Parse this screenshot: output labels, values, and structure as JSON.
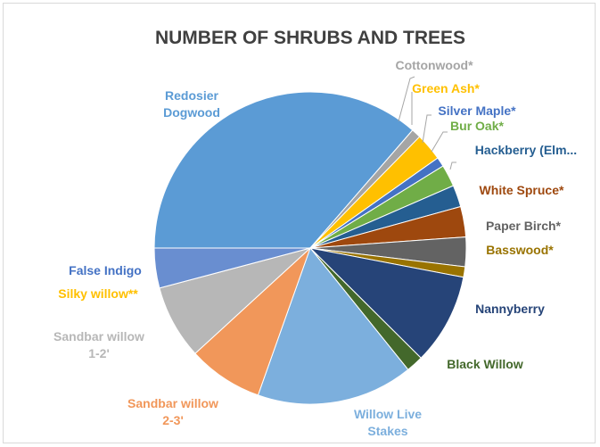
{
  "chart_data": {
    "type": "pie",
    "title": "NUMBER OF SHRUBS AND TREES",
    "slices": [
      {
        "label": "Redosier Dogwood",
        "value": 37.0,
        "color": "#5b9bd5"
      },
      {
        "label": "Cottonwood*",
        "value": 1.0,
        "color": "#a5a5a5"
      },
      {
        "label": "Green Ash*",
        "value": 2.9,
        "color": "#ffc000"
      },
      {
        "label": "Silver Maple*",
        "value": 1.0,
        "color": "#4472c4"
      },
      {
        "label": "Bur Oak*",
        "value": 2.3,
        "color": "#70ad47"
      },
      {
        "label": "Hackberry (Elm...",
        "value": 2.3,
        "color": "#255e91"
      },
      {
        "label": "White Spruce*",
        "value": 3.2,
        "color": "#9e480e"
      },
      {
        "label": "Paper Birch*",
        "value": 3.1,
        "color": "#636363"
      },
      {
        "label": "Basswood*",
        "value": 1.1,
        "color": "#997300"
      },
      {
        "label": "Nannyberry",
        "value": 9.6,
        "color": "#264478"
      },
      {
        "label": "Black Willow",
        "value": 1.8,
        "color": "#43682b"
      },
      {
        "label": "Willow Live Stakes",
        "value": 16.5,
        "color": "#7cafdd"
      },
      {
        "label": "Sandbar willow 2-3'",
        "value": 7.9,
        "color": "#f1975a"
      },
      {
        "label": "Sandbar willow 1-2'",
        "value": 7.8,
        "color": "#b7b7b7"
      },
      {
        "label": "Silky willow**",
        "value": 0.0,
        "color": "#ffcd33"
      },
      {
        "label": "False Indigo",
        "value": 4.2,
        "color": "#698ed0"
      }
    ]
  },
  "labels": [
    {
      "lines": [
        "Redosier",
        "Dogwood"
      ],
      "color": "#5b9bd5"
    },
    {
      "lines": [
        "Cottonwood*"
      ],
      "color": "#a5a5a5"
    },
    {
      "lines": [
        "Green Ash*"
      ],
      "color": "#ffc000"
    },
    {
      "lines": [
        "Silver Maple*"
      ],
      "color": "#4472c4"
    },
    {
      "lines": [
        "Bur Oak*"
      ],
      "color": "#70ad47"
    },
    {
      "lines": [
        "Hackberry (Elm..."
      ],
      "color": "#255e91"
    },
    {
      "lines": [
        "White Spruce*"
      ],
      "color": "#9e480e"
    },
    {
      "lines": [
        "Paper Birch*"
      ],
      "color": "#636363"
    },
    {
      "lines": [
        "Basswood*"
      ],
      "color": "#997300"
    },
    {
      "lines": [
        "Nannyberry"
      ],
      "color": "#264478"
    },
    {
      "lines": [
        "Black Willow"
      ],
      "color": "#43682b"
    },
    {
      "lines": [
        "Willow Live",
        "Stakes"
      ],
      "color": "#7cafdd"
    },
    {
      "lines": [
        "Sandbar willow",
        "2-3'"
      ],
      "color": "#f1975a"
    },
    {
      "lines": [
        "Sandbar willow",
        "1-2'"
      ],
      "color": "#b7b7b7"
    },
    {
      "lines": [
        "Silky willow**"
      ],
      "color": "#ffc000"
    },
    {
      "lines": [
        "False Indigo"
      ],
      "color": "#4472c4"
    }
  ]
}
